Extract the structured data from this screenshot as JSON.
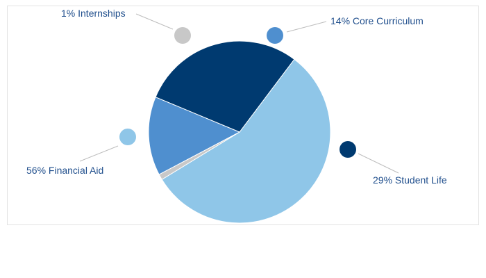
{
  "chart_data": {
    "type": "pie",
    "title": "",
    "slices": [
      {
        "label": "Financial Aid",
        "value": 56,
        "color": "#8fc6e8"
      },
      {
        "label": "Internships",
        "value": 1,
        "color": "#c8c8c8"
      },
      {
        "label": "Core Curriculum",
        "value": 14,
        "color": "#4f8fcf"
      },
      {
        "label": "Student Life",
        "value": 29,
        "color": "#003a70"
      }
    ],
    "labels": [
      {
        "text": "1% Internships",
        "slice": 1
      },
      {
        "text": "14% Core Curriculum",
        "slice": 2
      },
      {
        "text": "29% Student Life",
        "slice": 3
      },
      {
        "text": "56% Financial Aid",
        "slice": 0
      }
    ],
    "legend": "callouts"
  }
}
